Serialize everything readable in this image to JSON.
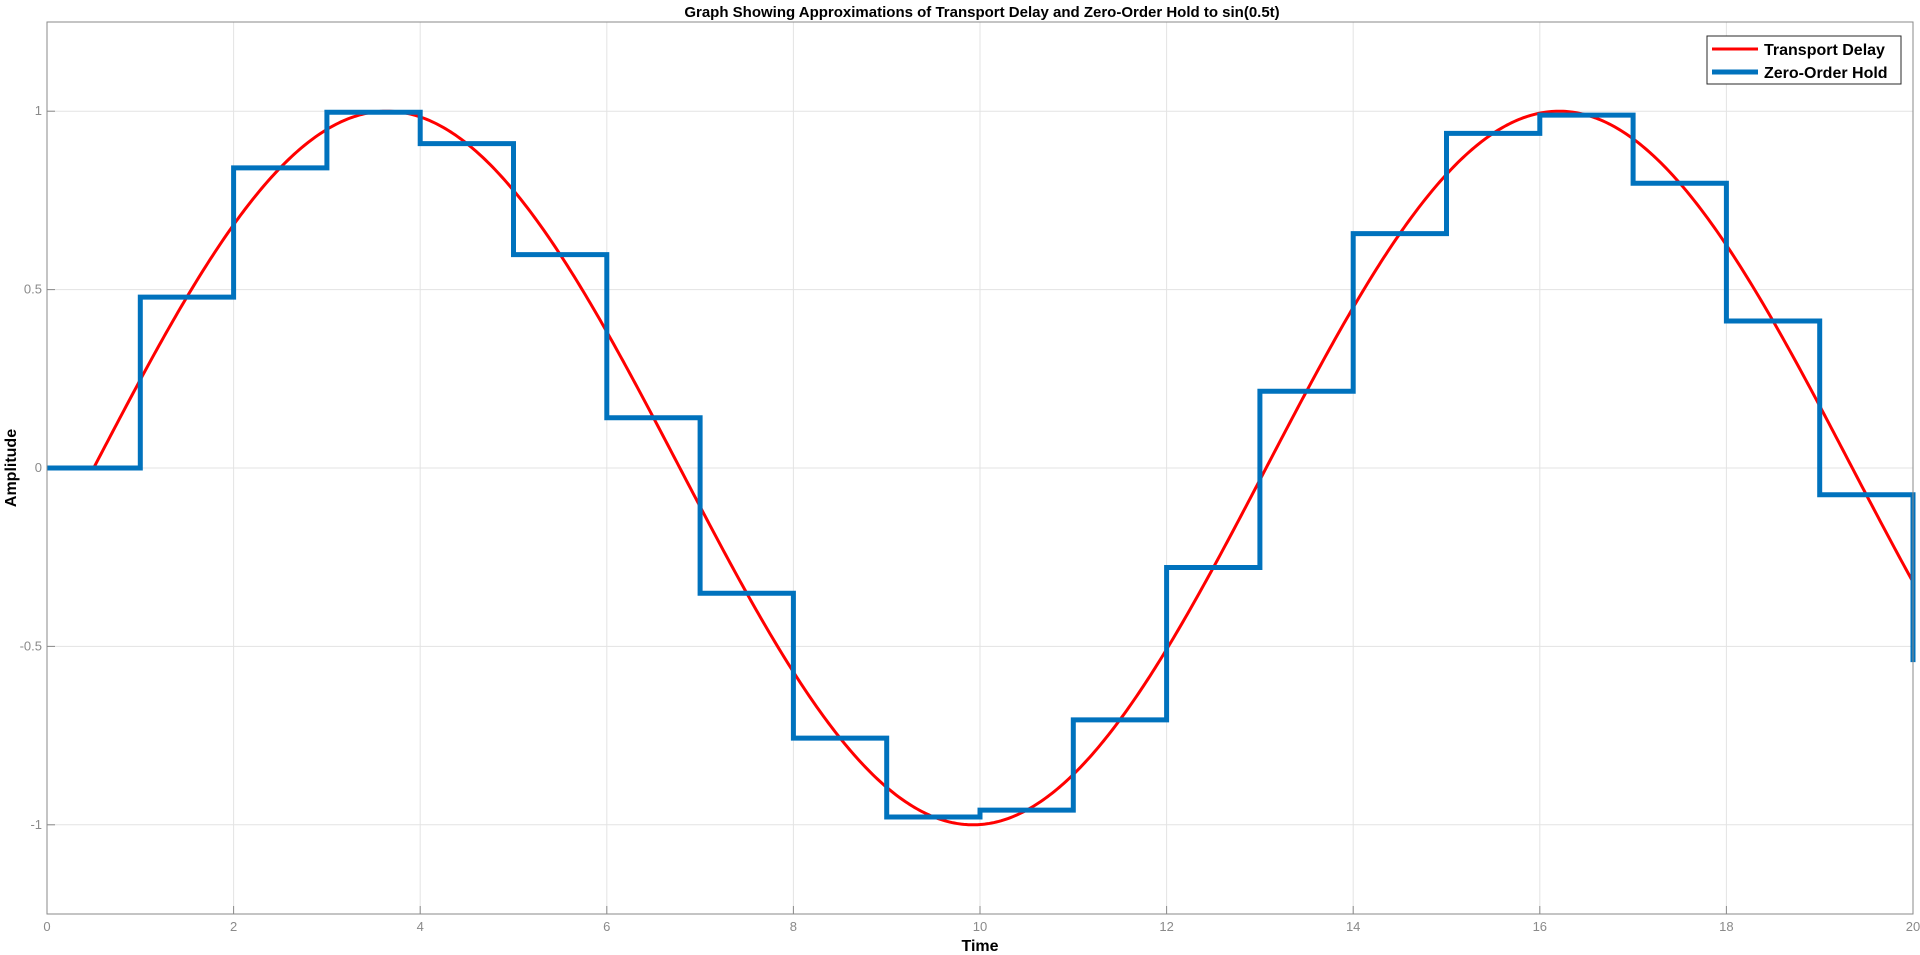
{
  "chart_data": {
    "type": "line",
    "title": "Graph Showing Approximations of Transport Delay and Zero-Order Hold to sin(0.5t)",
    "xlabel": "Time",
    "ylabel": "Amplitude",
    "xlim": [
      0,
      20
    ],
    "ylim": [
      -1.25,
      1.25
    ],
    "xticks": [
      0,
      2,
      4,
      6,
      8,
      10,
      12,
      14,
      16,
      18,
      20
    ],
    "xtick_labels": [
      "0",
      "2",
      "4",
      "6",
      "8",
      "10",
      "12",
      "14",
      "16",
      "18",
      "20"
    ],
    "yticks": [
      1,
      0.5,
      0,
      -0.5,
      -1
    ],
    "ytick_labels": [
      "1",
      "0.5",
      "0",
      "-0.5",
      "-1"
    ],
    "grid": true,
    "legend_position": "top-right",
    "series": [
      {
        "name": "Transport Delay",
        "color": "#ff0000",
        "style": "continuous",
        "function": "sin(0.5*(t - 0.5)) for t >= 0.5, else 0",
        "delay": 0.5,
        "frequency": 0.5
      },
      {
        "name": "Zero-Order Hold",
        "color": "#0072bd",
        "style": "step",
        "x": [
          0,
          1,
          2,
          3,
          4,
          5,
          6,
          7,
          8,
          9,
          10,
          11,
          12,
          13,
          14,
          15,
          16,
          17,
          18,
          19,
          20
        ],
        "values": [
          0,
          0.479,
          0.841,
          0.997,
          0.909,
          0.598,
          0.141,
          -0.351,
          -0.757,
          -0.978,
          -0.959,
          -0.706,
          -0.279,
          0.215,
          0.657,
          0.938,
          0.989,
          0.798,
          0.412,
          -0.075,
          -0.544
        ]
      }
    ]
  },
  "colors": {
    "grid": "#e3e3e3",
    "axis": "#8a8a8a"
  }
}
